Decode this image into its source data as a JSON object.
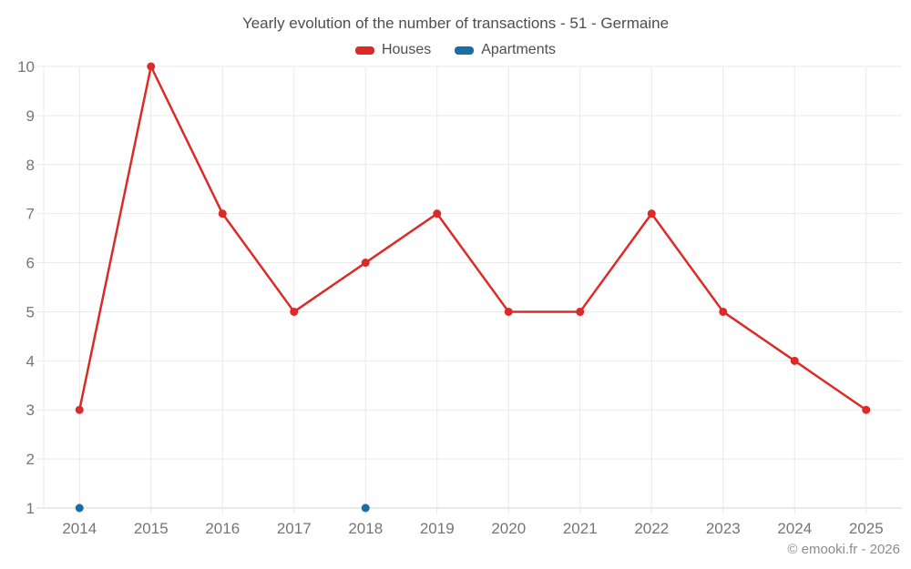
{
  "chart_data": {
    "type": "line",
    "title": "Yearly evolution of the number of transactions - 51 - Germaine",
    "categories": [
      "2014",
      "2015",
      "2016",
      "2017",
      "2018",
      "2019",
      "2020",
      "2021",
      "2022",
      "2023",
      "2024",
      "2025"
    ],
    "series": [
      {
        "name": "Houses",
        "color": "#dc2a28",
        "values": [
          3,
          10,
          7,
          5,
          6,
          7,
          5,
          5,
          7,
          5,
          4,
          3
        ]
      },
      {
        "name": "Apartments",
        "color": "#1a6da5",
        "values": [
          1,
          null,
          null,
          null,
          1,
          null,
          null,
          null,
          null,
          null,
          null,
          null
        ]
      }
    ],
    "ylim": [
      1,
      10
    ],
    "yticks": [
      1,
      2,
      3,
      4,
      5,
      6,
      7,
      8,
      9,
      10
    ],
    "grid": true,
    "legend_position": "top",
    "xlabel": "",
    "ylabel": "",
    "copyright": "© emooki.fr - 2026",
    "colors": {
      "grid": "#e9e9e9",
      "axis": "#d4d4d4",
      "tick_label": "#757575",
      "title_text": "#4e4e4e",
      "copyright_text": "#8c8c8c",
      "background": "#ffffff"
    }
  }
}
